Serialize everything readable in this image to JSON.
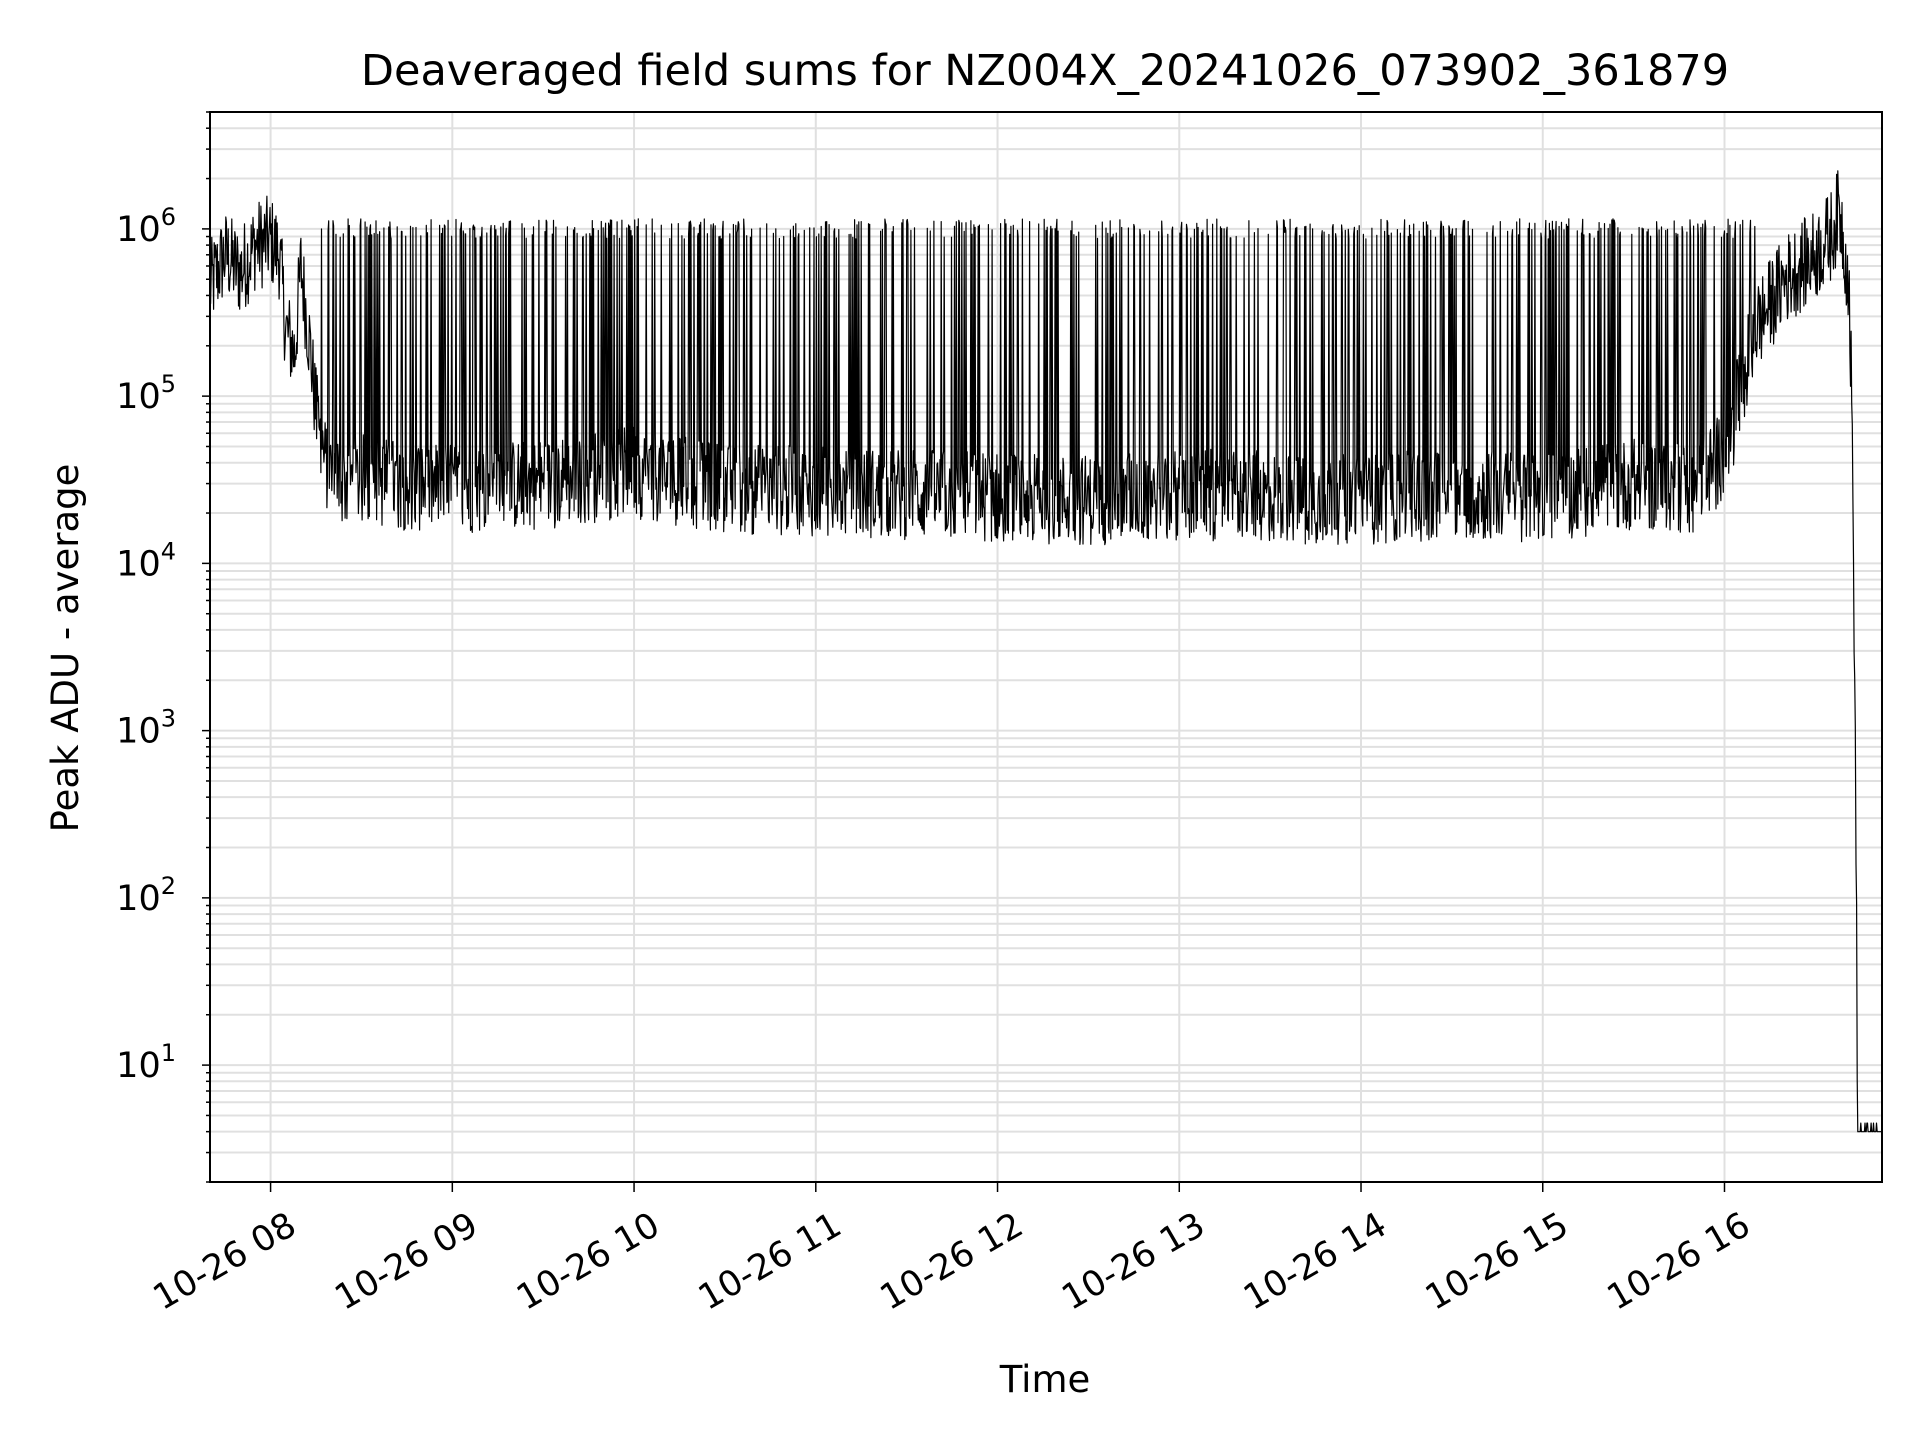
{
  "chart_data": {
    "type": "line",
    "title": "Deaveraged field sums for NZ004X_20241026_073902_361879",
    "xlabel": "Time",
    "ylabel": "Peak ADU - average",
    "yscale": "log",
    "grid": true,
    "x_ticks": [
      "10-26 08",
      "10-26 09",
      "10-26 10",
      "10-26 11",
      "10-26 12",
      "10-26 13",
      "10-26 14",
      "10-26 15",
      "10-26 16"
    ],
    "y_ticks": [
      {
        "base": "10",
        "exp": "1"
      },
      {
        "base": "10",
        "exp": "2"
      },
      {
        "base": "10",
        "exp": "3"
      },
      {
        "base": "10",
        "exp": "4"
      },
      {
        "base": "10",
        "exp": "5"
      },
      {
        "base": "10",
        "exp": "6"
      }
    ],
    "xlim": [
      "2024-10-26 07:40",
      "2024-10-26 16:52"
    ],
    "ylim": [
      2,
      5000000
    ],
    "series": [
      {
        "color": "#000000",
        "x": [
          "2024-10-26 07:40",
          "2024-10-26 07:45",
          "2024-10-26 07:50",
          "2024-10-26 07:55",
          "2024-10-26 08:00",
          "2024-10-26 08:03",
          "2024-10-26 08:05",
          "2024-10-26 08:08",
          "2024-10-26 08:10",
          "2024-10-26 08:13",
          "2024-10-26 08:15",
          "2024-10-26 08:18",
          "2024-10-26 08:20",
          "2024-10-26 08:25",
          "2024-10-26 08:30",
          "2024-10-26 08:40",
          "2024-10-26 09:00",
          "2024-10-26 09:30",
          "2024-10-26 10:00",
          "2024-10-26 10:30",
          "2024-10-26 11:00",
          "2024-10-26 11:30",
          "2024-10-26 12:00",
          "2024-10-26 12:30",
          "2024-10-26 13:00",
          "2024-10-26 13:30",
          "2024-10-26 14:00",
          "2024-10-26 14:30",
          "2024-10-26 15:00",
          "2024-10-26 15:30",
          "2024-10-26 15:50",
          "2024-10-26 16:00",
          "2024-10-26 16:05",
          "2024-10-26 16:10",
          "2024-10-26 16:20",
          "2024-10-26 16:30",
          "2024-10-26 16:35",
          "2024-10-26 16:38",
          "2024-10-26 16:41",
          "2024-10-26 16:42",
          "2024-10-26 16:43",
          "2024-10-26 16:44",
          "2024-10-26 16:52"
        ],
        "y": [
          450000,
          700000,
          550000,
          800000,
          850000,
          700000,
          250000,
          180000,
          600000,
          200000,
          80000,
          40000,
          35000,
          30000,
          32000,
          30000,
          28000,
          30000,
          35000,
          28000,
          27000,
          26000,
          25000,
          24000,
          26000,
          25000,
          24000,
          26000,
          25000,
          30000,
          28000,
          45000,
          100000,
          250000,
          500000,
          700000,
          900000,
          1300000,
          500000,
          100000,
          2500,
          4,
          4
        ]
      }
    ],
    "spikes": {
      "description_free": true,
      "peak": 1000000,
      "start": "2024-10-26 08:15",
      "end": "2024-10-26 16:10"
    }
  }
}
